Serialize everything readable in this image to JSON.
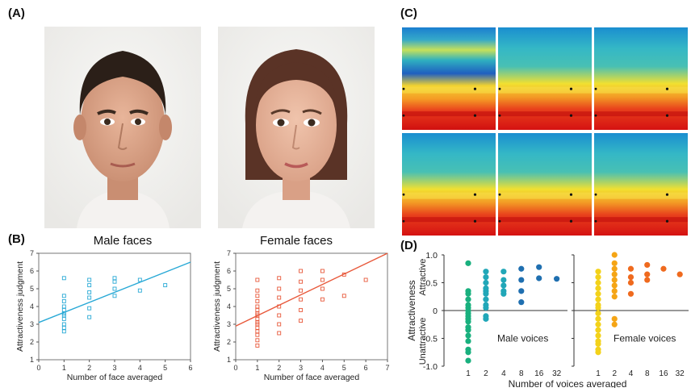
{
  "panels": {
    "a": "(A)",
    "b": "(B)",
    "c": "(C)",
    "d": "(D)"
  },
  "faces": {
    "male_caption": "Male faces",
    "female_caption": "Female faces"
  },
  "colors": {
    "male_series": "#29a9d6",
    "female_series": "#e8583a",
    "voice_male_series": "#1aa6a0",
    "voice_female_series": "#f0a010"
  },
  "chart_data": [
    {
      "id": "male-faces-scatter",
      "type": "scatter",
      "xlabel": "Number of face averaged",
      "ylabel": "Attractiveness judgment",
      "xlim": [
        0,
        6
      ],
      "ylim": [
        1,
        7
      ],
      "xticks": [
        "0",
        "1",
        "2",
        "3",
        "4",
        "5",
        "6"
      ],
      "yticks": [
        "1",
        "2",
        "3",
        "4",
        "5",
        "6",
        "7"
      ],
      "points": [
        [
          1,
          2.6
        ],
        [
          1,
          2.8
        ],
        [
          1,
          3.0
        ],
        [
          1,
          3.3
        ],
        [
          1,
          3.5
        ],
        [
          1,
          3.6
        ],
        [
          1,
          3.8
        ],
        [
          1,
          4.0
        ],
        [
          1,
          4.3
        ],
        [
          1,
          4.6
        ],
        [
          1,
          5.6
        ],
        [
          2,
          3.4
        ],
        [
          2,
          3.9
        ],
        [
          2,
          4.5
        ],
        [
          2,
          4.8
        ],
        [
          2,
          5.2
        ],
        [
          2,
          5.5
        ],
        [
          3,
          4.6
        ],
        [
          3,
          5.0
        ],
        [
          3,
          5.4
        ],
        [
          3,
          5.6
        ],
        [
          4,
          4.9
        ],
        [
          4,
          5.5
        ],
        [
          5,
          5.2
        ]
      ],
      "trend": [
        [
          0,
          3.1
        ],
        [
          6,
          6.5
        ]
      ]
    },
    {
      "id": "female-faces-scatter",
      "type": "scatter",
      "xlabel": "Number of face averaged",
      "ylabel": "Attractiveness judgment",
      "xlim": [
        0,
        7
      ],
      "ylim": [
        1,
        7
      ],
      "xticks": [
        "0",
        "1",
        "2",
        "3",
        "4",
        "5",
        "6",
        "7"
      ],
      "yticks": [
        "1",
        "2",
        "3",
        "4",
        "5",
        "6",
        "7"
      ],
      "points": [
        [
          1,
          1.8
        ],
        [
          1,
          2.1
        ],
        [
          1,
          2.4
        ],
        [
          1,
          2.6
        ],
        [
          1,
          2.8
        ],
        [
          1,
          3.0
        ],
        [
          1,
          3.1
        ],
        [
          1,
          3.3
        ],
        [
          1,
          3.5
        ],
        [
          1,
          3.6
        ],
        [
          1,
          3.8
        ],
        [
          1,
          4.0
        ],
        [
          1,
          4.3
        ],
        [
          1,
          4.6
        ],
        [
          1,
          4.9
        ],
        [
          1,
          5.5
        ],
        [
          2,
          2.5
        ],
        [
          2,
          3.0
        ],
        [
          2,
          3.5
        ],
        [
          2,
          4.0
        ],
        [
          2,
          4.5
        ],
        [
          2,
          5.0
        ],
        [
          2,
          5.6
        ],
        [
          3,
          3.2
        ],
        [
          3,
          3.8
        ],
        [
          3,
          4.4
        ],
        [
          3,
          4.9
        ],
        [
          3,
          5.4
        ],
        [
          3,
          6.0
        ],
        [
          4,
          4.4
        ],
        [
          4,
          5.0
        ],
        [
          4,
          5.5
        ],
        [
          4,
          6.0
        ],
        [
          5,
          4.6
        ],
        [
          5,
          5.8
        ],
        [
          6,
          5.5
        ]
      ],
      "trend": [
        [
          0,
          2.9
        ],
        [
          7,
          7.0
        ]
      ]
    },
    {
      "id": "voices-dotplot",
      "type": "scatter",
      "xlabel": "Number of voices averaged",
      "ylabel": "Attractiveness",
      "ylabel_top": "Attractive",
      "ylabel_bottom": "Unattractive",
      "ylim": [
        -1.0,
        1.0
      ],
      "yticks": [
        "-1.0",
        "-0.5",
        "0",
        "0.5",
        "1.0"
      ],
      "categories": [
        "1",
        "2",
        "4",
        "8",
        "16",
        "32"
      ],
      "series": [
        {
          "name": "Male voices",
          "x": [
            "1",
            "1",
            "1",
            "1",
            "1",
            "1",
            "1",
            "1",
            "1",
            "1",
            "1",
            "1",
            "1",
            "1",
            "1",
            "1",
            "1",
            "1",
            "2",
            "2",
            "2",
            "2",
            "2",
            "2",
            "2",
            "2",
            "2",
            "2",
            "2",
            "4",
            "4",
            "4",
            "4",
            "4",
            "8",
            "8",
            "8",
            "8",
            "16",
            "16",
            "32"
          ],
          "y": [
            0.85,
            0.35,
            0.3,
            0.2,
            0.1,
            0.05,
            0.0,
            -0.05,
            -0.1,
            -0.15,
            -0.2,
            -0.3,
            -0.35,
            -0.45,
            -0.55,
            -0.7,
            -0.75,
            -0.9,
            0.7,
            0.6,
            0.5,
            0.4,
            0.35,
            0.3,
            0.2,
            0.1,
            0.05,
            -0.1,
            -0.15,
            0.7,
            0.55,
            0.45,
            0.35,
            0.3,
            0.75,
            0.55,
            0.35,
            0.15,
            0.78,
            0.58,
            0.57
          ]
        },
        {
          "name": "Female voices",
          "x": [
            "1",
            "1",
            "1",
            "1",
            "1",
            "1",
            "1",
            "1",
            "1",
            "1",
            "1",
            "1",
            "1",
            "1",
            "1",
            "1",
            "1",
            "2",
            "2",
            "2",
            "2",
            "2",
            "2",
            "2",
            "2",
            "2",
            "2",
            "4",
            "4",
            "4",
            "4",
            "8",
            "8",
            "8",
            "16",
            "32"
          ],
          "y": [
            0.7,
            0.6,
            0.5,
            0.4,
            0.3,
            0.2,
            0.1,
            0.05,
            -0.05,
            -0.15,
            -0.25,
            -0.35,
            -0.45,
            -0.55,
            -0.6,
            -0.7,
            -0.75,
            1.0,
            0.85,
            0.75,
            0.65,
            0.55,
            0.45,
            0.35,
            0.25,
            -0.15,
            -0.25,
            0.75,
            0.6,
            0.5,
            0.3,
            0.82,
            0.65,
            0.55,
            0.75,
            0.65
          ]
        }
      ]
    }
  ]
}
